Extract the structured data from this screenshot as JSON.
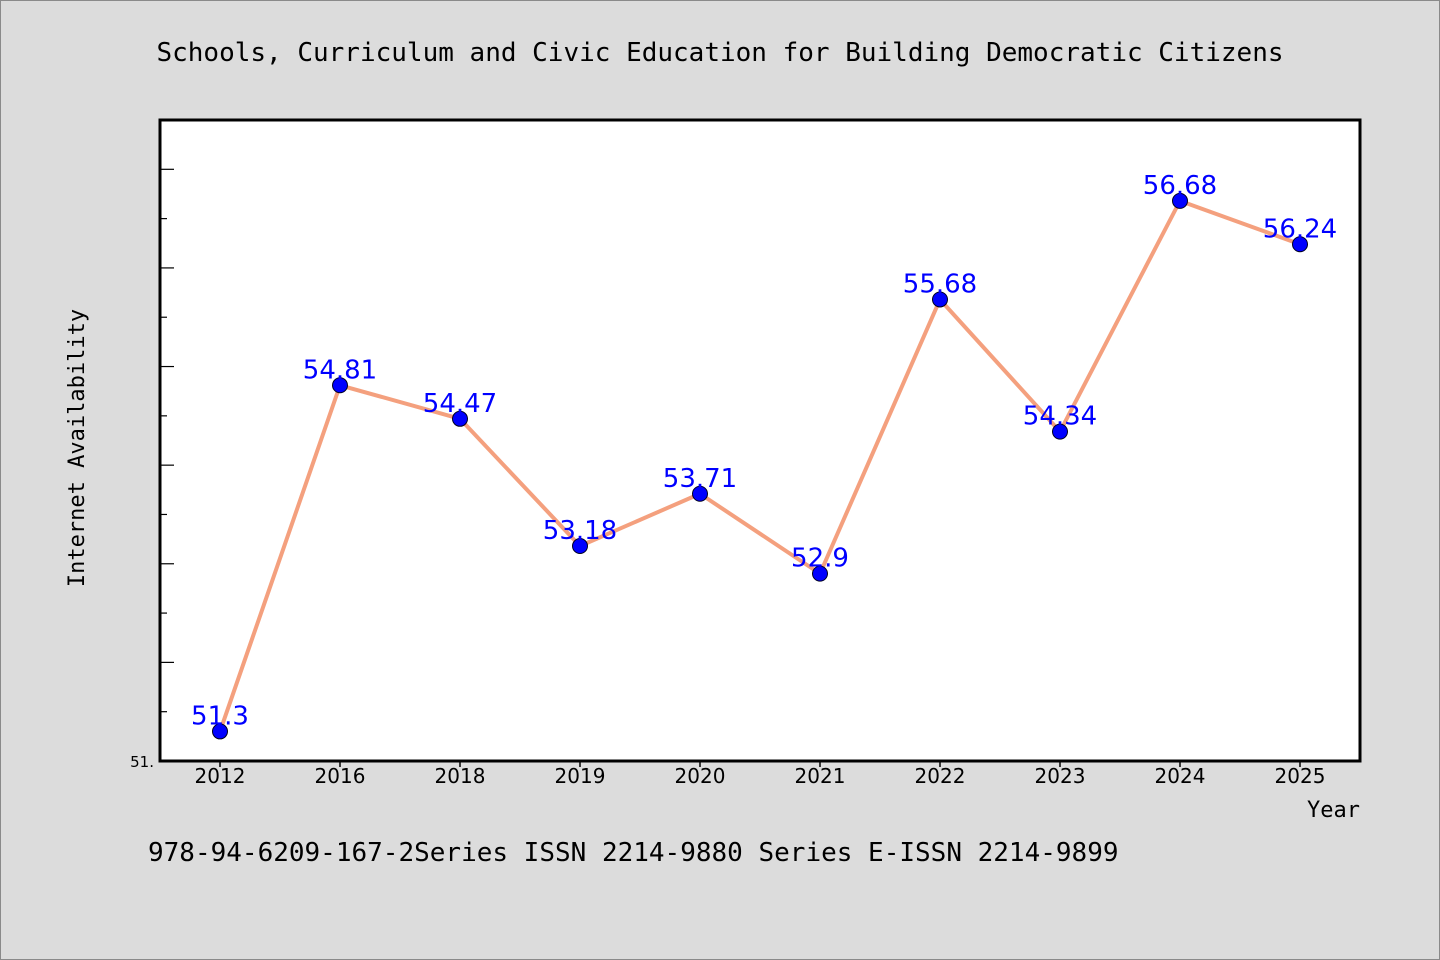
{
  "chart_data": {
    "type": "line",
    "title": "Schools, Curriculum and Civic Education for Building Democratic Citizens",
    "xlabel": "Year",
    "ylabel": "Internet Availability",
    "categories": [
      "2012",
      "2016",
      "2018",
      "2019",
      "2020",
      "2021",
      "2022",
      "2023",
      "2024",
      "2025"
    ],
    "series": [
      {
        "values": [
          51.3,
          54.81,
          54.47,
          53.18,
          53.71,
          52.9,
          55.68,
          54.34,
          56.68,
          56.24
        ],
        "data_labels": [
          "51.3",
          "54.81",
          "54.47",
          "53.18",
          "53.71",
          "52.9",
          "55.68",
          "54.34",
          "56.68",
          "56.24"
        ],
        "line_color": "#f4a07e",
        "marker_color": "#0000ff"
      }
    ],
    "ylim": [
      51.0,
      57.5
    ],
    "y_tick_label": "51.",
    "grid": false,
    "legend": "none"
  },
  "footer": {
    "text": "978-94-6209-167-2Series ISSN 2214-9880 Series E-ISSN 2214-9899"
  }
}
